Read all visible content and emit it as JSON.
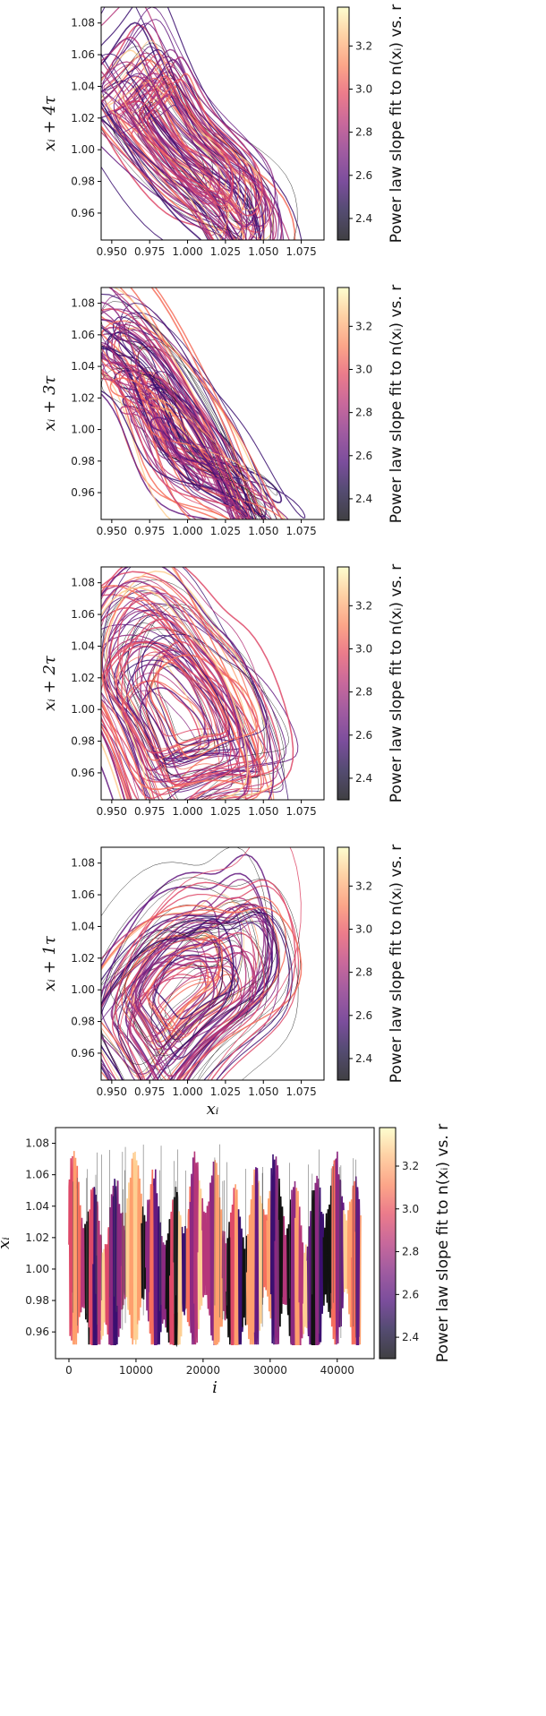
{
  "colorbar": {
    "label": "Power law slope fit to n(xᵢ) vs. r",
    "ticks": [
      2.4,
      2.6,
      2.8,
      3.0,
      3.2
    ],
    "range": [
      2.3,
      3.38
    ],
    "colormap": "magma"
  },
  "chart_data": [
    {
      "type": "line",
      "kind": "phase",
      "panel": "lag-4",
      "ylabel": "xᵢ + 4τ",
      "xlabel": "",
      "xlim": [
        0.943,
        1.09
      ],
      "ylim": [
        0.943,
        1.09
      ],
      "xticks": [
        0.95,
        0.975,
        1.0,
        1.025,
        1.05,
        1.075
      ],
      "yticks": [
        0.96,
        0.98,
        1.0,
        1.02,
        1.04,
        1.06,
        1.08
      ],
      "x_range_data": [
        0.95,
        1.08
      ],
      "y_range_data": [
        0.95,
        1.08
      ]
    },
    {
      "type": "line",
      "kind": "phase",
      "panel": "lag-3",
      "ylabel": "xᵢ + 3τ",
      "xlabel": "",
      "xlim": [
        0.943,
        1.09
      ],
      "ylim": [
        0.943,
        1.09
      ],
      "xticks": [
        0.95,
        0.975,
        1.0,
        1.025,
        1.05,
        1.075
      ],
      "yticks": [
        0.96,
        0.98,
        1.0,
        1.02,
        1.04,
        1.06,
        1.08
      ],
      "x_range_data": [
        0.95,
        1.08
      ],
      "y_range_data": [
        0.95,
        1.08
      ]
    },
    {
      "type": "line",
      "kind": "phase",
      "panel": "lag-2",
      "ylabel": "xᵢ + 2τ",
      "xlabel": "",
      "xlim": [
        0.943,
        1.09
      ],
      "ylim": [
        0.943,
        1.09
      ],
      "xticks": [
        0.95,
        0.975,
        1.0,
        1.025,
        1.05,
        1.075
      ],
      "yticks": [
        0.96,
        0.98,
        1.0,
        1.02,
        1.04,
        1.06,
        1.08
      ],
      "x_range_data": [
        0.95,
        1.08
      ],
      "y_range_data": [
        0.95,
        1.08
      ]
    },
    {
      "type": "line",
      "kind": "phase",
      "panel": "lag-1",
      "ylabel": "xᵢ + 1τ",
      "xlabel": "xᵢ",
      "xlim": [
        0.943,
        1.09
      ],
      "ylim": [
        0.943,
        1.09
      ],
      "xticks": [
        0.95,
        0.975,
        1.0,
        1.025,
        1.05,
        1.075
      ],
      "yticks": [
        0.96,
        0.98,
        1.0,
        1.02,
        1.04,
        1.06,
        1.08
      ],
      "x_range_data": [
        0.95,
        1.08
      ],
      "y_range_data": [
        0.95,
        1.08
      ]
    },
    {
      "type": "line",
      "kind": "series",
      "panel": "time-series",
      "ylabel": "xᵢ",
      "xlabel": "i",
      "xlim": [
        -2000,
        45500
      ],
      "ylim": [
        0.943,
        1.09
      ],
      "xticks": [
        0,
        10000,
        20000,
        30000,
        40000
      ],
      "yticks": [
        0.96,
        0.98,
        1.0,
        1.02,
        1.04,
        1.06,
        1.08
      ],
      "x_range_data": [
        0,
        43500
      ],
      "y_range_data": [
        0.95,
        1.08
      ]
    }
  ]
}
